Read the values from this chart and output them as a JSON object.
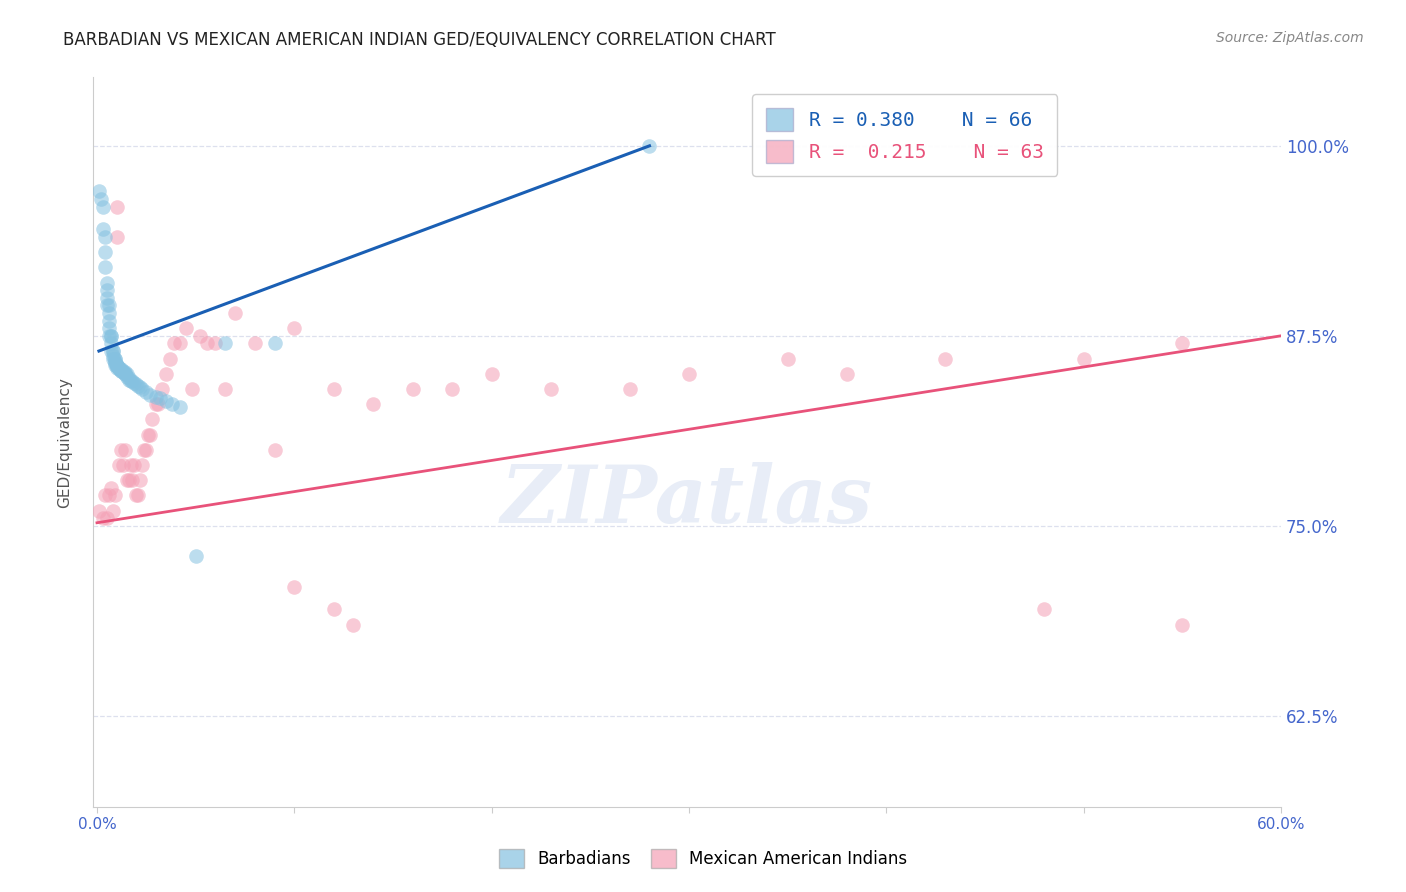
{
  "title": "BARBADIAN VS MEXICAN AMERICAN INDIAN GED/EQUIVALENCY CORRELATION CHART",
  "source": "Source: ZipAtlas.com",
  "ylabel": "GED/Equivalency",
  "y_ticks": [
    0.625,
    0.75,
    0.875,
    1.0
  ],
  "y_tick_labels": [
    "62.5%",
    "75.0%",
    "87.5%",
    "100.0%"
  ],
  "xlim": [
    -0.002,
    0.6
  ],
  "ylim": [
    0.565,
    1.045
  ],
  "blue_R": 0.38,
  "blue_N": 66,
  "pink_R": 0.215,
  "pink_N": 63,
  "blue_color": "#85c1e0",
  "pink_color": "#f4a0b5",
  "blue_line_color": "#1a5fb4",
  "pink_line_color": "#e8527a",
  "blue_label": "Barbadians",
  "pink_label": "Mexican American Indians",
  "tick_color": "#4466cc",
  "grid_color": "#dde0ee",
  "blue_x": [
    0.001,
    0.002,
    0.003,
    0.003,
    0.004,
    0.004,
    0.004,
    0.005,
    0.005,
    0.005,
    0.005,
    0.006,
    0.006,
    0.006,
    0.006,
    0.006,
    0.007,
    0.007,
    0.007,
    0.007,
    0.008,
    0.008,
    0.008,
    0.008,
    0.009,
    0.009,
    0.009,
    0.009,
    0.009,
    0.01,
    0.01,
    0.01,
    0.01,
    0.011,
    0.011,
    0.011,
    0.012,
    0.012,
    0.012,
    0.013,
    0.013,
    0.014,
    0.014,
    0.014,
    0.015,
    0.015,
    0.016,
    0.016,
    0.017,
    0.018,
    0.019,
    0.02,
    0.021,
    0.022,
    0.023,
    0.025,
    0.027,
    0.03,
    0.032,
    0.035,
    0.038,
    0.042,
    0.05,
    0.065,
    0.09,
    0.28
  ],
  "blue_y": [
    0.97,
    0.965,
    0.96,
    0.945,
    0.94,
    0.93,
    0.92,
    0.91,
    0.905,
    0.9,
    0.895,
    0.895,
    0.89,
    0.885,
    0.88,
    0.875,
    0.875,
    0.875,
    0.87,
    0.865,
    0.865,
    0.865,
    0.862,
    0.86,
    0.86,
    0.86,
    0.858,
    0.857,
    0.856,
    0.856,
    0.855,
    0.855,
    0.854,
    0.854,
    0.854,
    0.853,
    0.853,
    0.852,
    0.852,
    0.852,
    0.851,
    0.851,
    0.85,
    0.85,
    0.85,
    0.848,
    0.847,
    0.846,
    0.845,
    0.845,
    0.844,
    0.843,
    0.842,
    0.841,
    0.84,
    0.838,
    0.836,
    0.835,
    0.834,
    0.832,
    0.83,
    0.828,
    0.73,
    0.87,
    0.87,
    1.0
  ],
  "pink_x": [
    0.001,
    0.003,
    0.004,
    0.005,
    0.006,
    0.007,
    0.008,
    0.009,
    0.01,
    0.01,
    0.011,
    0.012,
    0.013,
    0.014,
    0.015,
    0.016,
    0.017,
    0.018,
    0.019,
    0.02,
    0.021,
    0.022,
    0.023,
    0.024,
    0.025,
    0.026,
    0.027,
    0.028,
    0.03,
    0.031,
    0.033,
    0.035,
    0.037,
    0.039,
    0.042,
    0.045,
    0.048,
    0.052,
    0.056,
    0.06,
    0.065,
    0.07,
    0.08,
    0.09,
    0.1,
    0.12,
    0.14,
    0.16,
    0.18,
    0.2,
    0.23,
    0.27,
    0.3,
    0.35,
    0.38,
    0.43,
    0.5,
    0.55,
    0.1,
    0.13,
    0.48,
    0.55,
    0.12
  ],
  "pink_y": [
    0.76,
    0.755,
    0.77,
    0.755,
    0.77,
    0.775,
    0.76,
    0.77,
    0.96,
    0.94,
    0.79,
    0.8,
    0.79,
    0.8,
    0.78,
    0.78,
    0.79,
    0.78,
    0.79,
    0.77,
    0.77,
    0.78,
    0.79,
    0.8,
    0.8,
    0.81,
    0.81,
    0.82,
    0.83,
    0.83,
    0.84,
    0.85,
    0.86,
    0.87,
    0.87,
    0.88,
    0.84,
    0.875,
    0.87,
    0.87,
    0.84,
    0.89,
    0.87,
    0.8,
    0.88,
    0.84,
    0.83,
    0.84,
    0.84,
    0.85,
    0.84,
    0.84,
    0.85,
    0.86,
    0.85,
    0.86,
    0.86,
    0.87,
    0.71,
    0.685,
    0.695,
    0.685,
    0.695
  ],
  "blue_line_x": [
    0.001,
    0.28
  ],
  "blue_line_y": [
    0.865,
    1.0
  ],
  "pink_line_x": [
    0.0,
    0.6
  ],
  "pink_line_y": [
    0.752,
    0.875
  ]
}
